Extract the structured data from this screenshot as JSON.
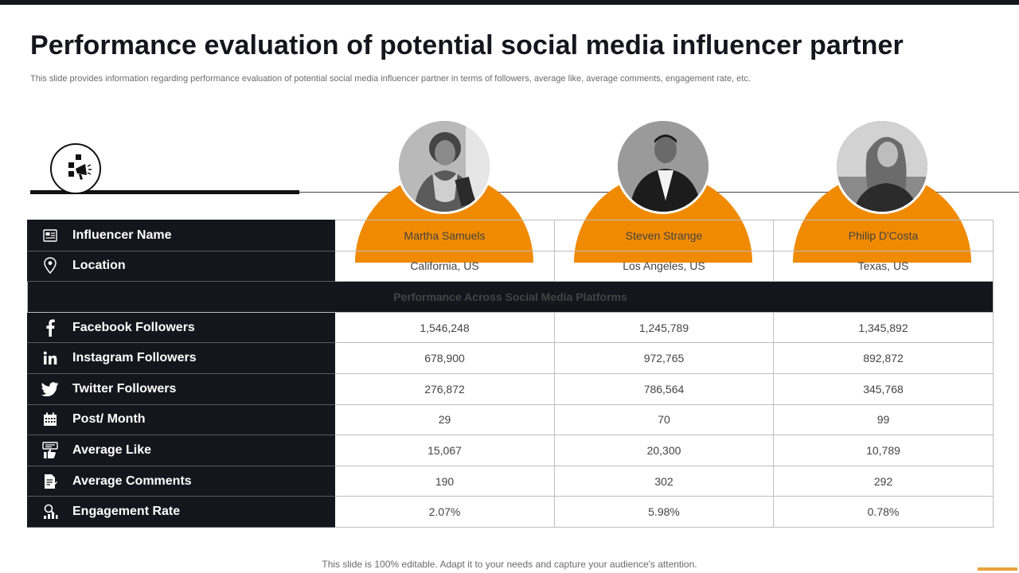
{
  "slide": {
    "title": "Performance evaluation of potential social media influencer partner",
    "subtitle": "This slide provides information regarding performance evaluation of potential social media influencer partner in terms of followers, average like, average comments, engagement rate, etc.",
    "footer": "This slide is 100% editable. Adapt it to your needs and capture your audience's attention."
  },
  "colors": {
    "accent": "#f08a00",
    "dark": "#15151d",
    "footer_accent": "#e8a23a"
  },
  "table": {
    "rows": [
      {
        "label": "Influencer Name",
        "icon": "id-card-icon",
        "values": [
          "Martha Samuels",
          "Steven Strange",
          "Philip D'Costa"
        ]
      },
      {
        "label": "Location",
        "icon": "location-pin-icon",
        "values": [
          "California, US",
          "Los Angeles, US",
          "Texas, US"
        ]
      }
    ],
    "section_header": "Performance Across Social Media Platforms",
    "metrics": [
      {
        "label": "Facebook Followers",
        "icon": "facebook-icon",
        "values": [
          "1,546,248",
          "1,245,789",
          "1,345,892"
        ]
      },
      {
        "label": "Instagram Followers",
        "icon": "linkedin-icon",
        "values": [
          "678,900",
          "972,765",
          "892,872"
        ]
      },
      {
        "label": "Twitter Followers",
        "icon": "twitter-icon",
        "values": [
          "276,872",
          "786,564",
          "345,768"
        ]
      },
      {
        "label": "Post/ Month",
        "icon": "calendar-icon",
        "values": [
          "29",
          "70",
          "99"
        ]
      },
      {
        "label": "Average Like",
        "icon": "thumbs-up-icon",
        "values": [
          "15,067",
          "20,300",
          "10,789"
        ]
      },
      {
        "label": "Average Comments",
        "icon": "comment-document-icon",
        "values": [
          "190",
          "302",
          "292"
        ]
      },
      {
        "label": "Engagement Rate",
        "icon": "engagement-chart-icon",
        "values": [
          "2.07%",
          "5.98%",
          "0.78%"
        ]
      }
    ]
  }
}
